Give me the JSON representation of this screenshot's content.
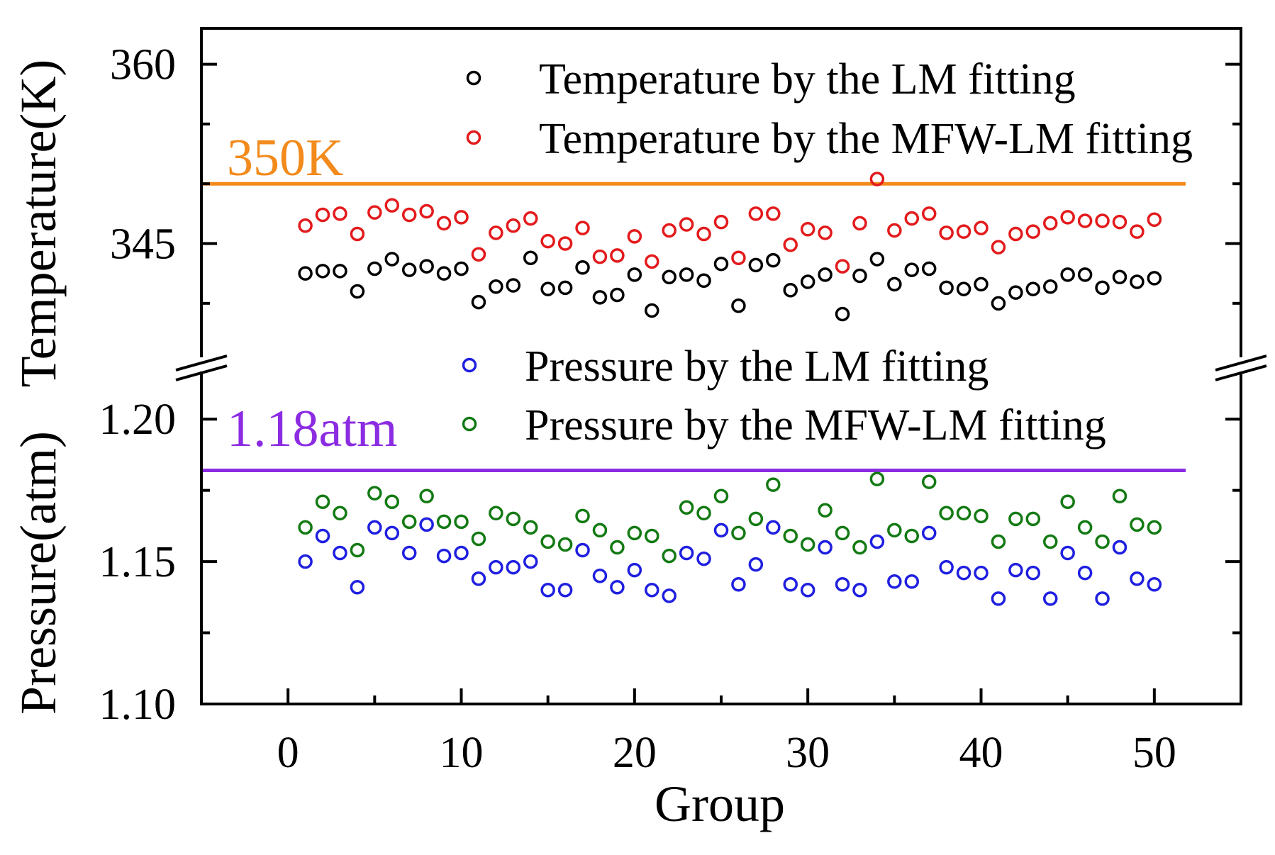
{
  "chart_data": {
    "type": "scatter",
    "xlabel": "Group",
    "xlim": [
      -5,
      55
    ],
    "xticks": [
      0,
      10,
      20,
      30,
      40,
      50
    ],
    "x": [
      1,
      2,
      3,
      4,
      5,
      6,
      7,
      8,
      9,
      10,
      11,
      12,
      13,
      14,
      15,
      16,
      17,
      18,
      19,
      20,
      21,
      22,
      23,
      24,
      25,
      26,
      27,
      28,
      29,
      30,
      31,
      32,
      33,
      34,
      35,
      36,
      37,
      38,
      39,
      40,
      41,
      42,
      43,
      44,
      45,
      46,
      47,
      48,
      49,
      50
    ],
    "ylabel_upper": "Temperature(K)",
    "ylabel_lower": "Pressure(atm)",
    "upper_panel": {
      "ylim": [
        337.5,
        363
      ],
      "yticks": [
        345,
        360
      ],
      "ytick_labels": [
        "345",
        "360"
      ],
      "reference_line": {
        "value": 350,
        "label": "350K",
        "color": "#f28a1c"
      },
      "series": [
        {
          "name": "Temperature by the LM fitting",
          "color": "#000000",
          "values": [
            342.5,
            342.7,
            342.7,
            341.0,
            342.9,
            343.7,
            342.8,
            343.1,
            342.5,
            342.9,
            340.1,
            341.4,
            341.5,
            343.8,
            341.2,
            341.3,
            343.0,
            340.5,
            340.7,
            342.4,
            339.4,
            342.2,
            342.4,
            341.9,
            343.3,
            339.8,
            343.2,
            343.6,
            341.1,
            341.8,
            342.4,
            339.1,
            342.3,
            343.7,
            341.6,
            342.8,
            342.9,
            341.3,
            341.2,
            341.6,
            340.0,
            340.9,
            341.2,
            341.4,
            342.4,
            342.4,
            341.3,
            342.2,
            341.8,
            342.1
          ]
        },
        {
          "name": "Temperature by the MFW-LM fitting",
          "color": "#e31a1c",
          "values": [
            346.5,
            347.4,
            347.5,
            345.8,
            347.6,
            348.2,
            347.4,
            347.7,
            346.7,
            347.2,
            344.1,
            345.9,
            346.5,
            347.1,
            345.2,
            345.0,
            346.3,
            343.9,
            344.0,
            345.6,
            343.5,
            346.1,
            346.6,
            345.8,
            346.8,
            343.8,
            347.5,
            347.5,
            344.9,
            346.2,
            345.9,
            343.1,
            346.7,
            350.4,
            346.1,
            347.1,
            347.5,
            345.9,
            346.0,
            346.3,
            344.7,
            345.8,
            346.0,
            346.7,
            347.2,
            346.9,
            346.9,
            346.8,
            346.0,
            347.0
          ]
        }
      ]
    },
    "lower_panel": {
      "ylim": [
        1.1,
        1.2115
      ],
      "yticks": [
        1.1,
        1.15,
        1.2
      ],
      "ytick_labels": [
        "1.10",
        "1.15",
        "1.20"
      ],
      "reference_line": {
        "value": 1.182,
        "label": "1.18atm",
        "color": "#8b2be2"
      },
      "series": [
        {
          "name": "Pressure by the LM fitting",
          "color": "#1f1fe0",
          "values": [
            1.15,
            1.159,
            1.153,
            1.141,
            1.162,
            1.16,
            1.153,
            1.163,
            1.152,
            1.153,
            1.144,
            1.148,
            1.148,
            1.15,
            1.14,
            1.14,
            1.154,
            1.145,
            1.141,
            1.147,
            1.14,
            1.138,
            1.153,
            1.151,
            1.161,
            1.142,
            1.149,
            1.162,
            1.142,
            1.14,
            1.155,
            1.142,
            1.14,
            1.157,
            1.143,
            1.143,
            1.16,
            1.148,
            1.146,
            1.146,
            1.137,
            1.147,
            1.146,
            1.137,
            1.153,
            1.146,
            1.137,
            1.155,
            1.144,
            1.142
          ]
        },
        {
          "name": "Pressure by the MFW-LM fitting",
          "color": "#137a13",
          "values": [
            1.162,
            1.171,
            1.167,
            1.154,
            1.174,
            1.171,
            1.164,
            1.173,
            1.164,
            1.164,
            1.158,
            1.167,
            1.165,
            1.162,
            1.157,
            1.156,
            1.166,
            1.161,
            1.155,
            1.16,
            1.159,
            1.152,
            1.169,
            1.167,
            1.173,
            1.16,
            1.165,
            1.177,
            1.159,
            1.156,
            1.168,
            1.16,
            1.155,
            1.179,
            1.161,
            1.159,
            1.178,
            1.167,
            1.167,
            1.166,
            1.157,
            1.165,
            1.165,
            1.157,
            1.171,
            1.162,
            1.157,
            1.173,
            1.163,
            1.162
          ]
        }
      ]
    }
  }
}
